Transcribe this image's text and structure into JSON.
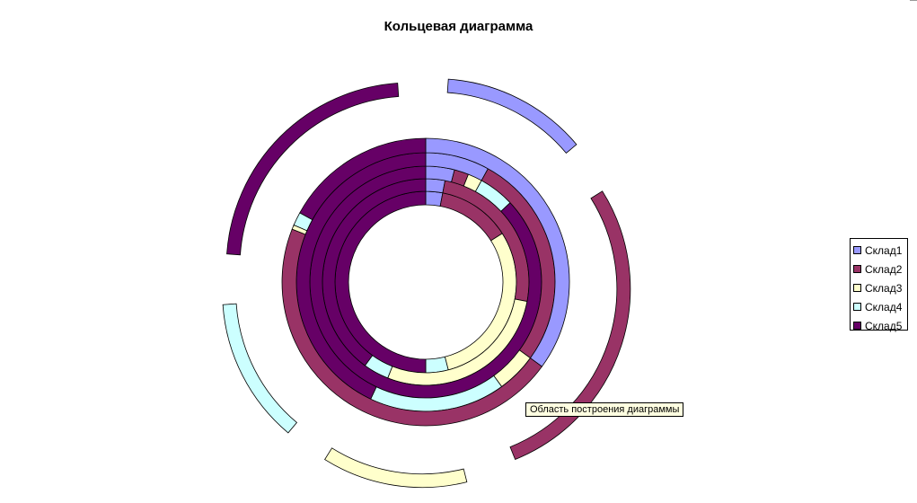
{
  "chart_data": {
    "type": "doughnut",
    "title": "Кольцевая диаграмма",
    "legend_position": "right",
    "categories": [
      "Склад1",
      "Склад2",
      "Склад3",
      "Склад4",
      "Склад5"
    ],
    "colors": [
      "#9999ff",
      "#993366",
      "#ffffcc",
      "#ccffff",
      "#660066"
    ],
    "rings_inner_to_outer": [
      {
        "values": [
          3,
          13,
          30,
          4,
          50
        ]
      },
      {
        "values": [
          3,
          25,
          28,
          4,
          40
        ]
      },
      {
        "values": [
          4,
          2,
          2,
          5,
          87
        ]
      },
      {
        "values": [
          8,
          27,
          5,
          17,
          43
        ]
      },
      {
        "values": [
          35,
          46,
          0.5,
          1.5,
          17
        ]
      },
      {
        "values": [
          15,
          30,
          15,
          15,
          25
        ],
        "exploded": true
      }
    ]
  },
  "tooltip": {
    "text": "Область построения диаграммы"
  }
}
